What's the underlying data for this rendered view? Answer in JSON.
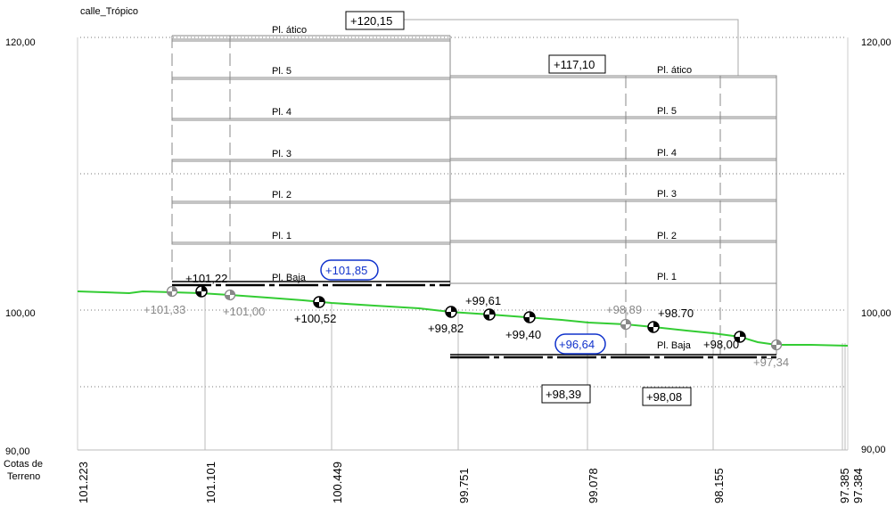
{
  "title": "calle_Trópico",
  "axis": {
    "left_labels": [
      "120,00",
      "100,00",
      "90,00"
    ],
    "right_labels": [
      "120,00",
      "100,00",
      "90,00"
    ],
    "bottom_caption": [
      "Cotas de",
      "Terreno"
    ],
    "terrain_ticks": [
      "101.223",
      "101.101",
      "100.449",
      "99.751",
      "99.078",
      "98.155",
      "97.385",
      "97.384"
    ]
  },
  "boxed_labels": [
    "+120,15",
    "+117,10",
    "+98,39",
    "+98,08"
  ],
  "oval_labels": [
    "+101,85",
    "+96,64"
  ],
  "building_left": {
    "floors": [
      "Pl. ático",
      "Pl. 5",
      "Pl. 4",
      "Pl. 3",
      "Pl. 2",
      "Pl. 1",
      "Pl. Baja"
    ]
  },
  "building_right": {
    "floors": [
      "Pl. ático",
      "Pl. 5",
      "Pl. 4",
      "Pl. 3",
      "Pl. 2",
      "Pl. 1",
      "Pl. Baja"
    ]
  },
  "elevations_dark": [
    "+101,22",
    "+100,52",
    "+99,61",
    "+99,82",
    "+99,40",
    "+98.70",
    "+98,00"
  ],
  "elevations_grey": [
    "+101,33",
    "+101,00",
    "+98,89",
    "+97,34"
  ],
  "colors": {
    "terrain": "#33cc33",
    "oval": "#1133cc",
    "grey_text": "#888888"
  }
}
